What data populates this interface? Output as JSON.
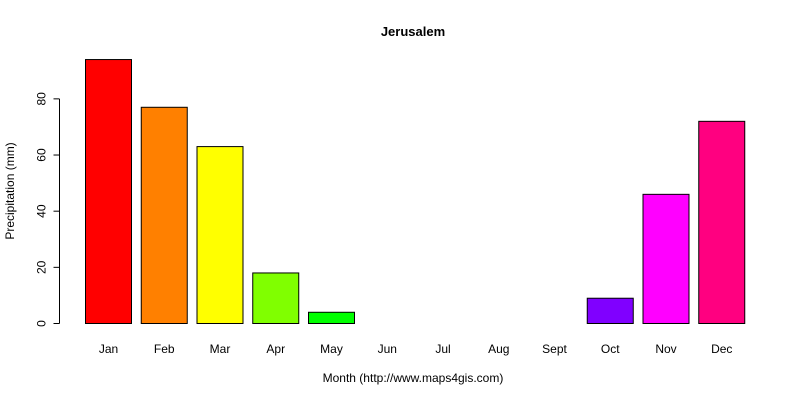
{
  "chart_data": {
    "type": "bar",
    "title": "Jerusalem",
    "xlabel": "Month (http://www.maps4gis.com)",
    "ylabel": "Precipitation (mm)",
    "categories": [
      "Jan",
      "Feb",
      "Mar",
      "Apr",
      "May",
      "Jun",
      "Jul",
      "Aug",
      "Sept",
      "Oct",
      "Nov",
      "Dec"
    ],
    "values": [
      94,
      77,
      63,
      18,
      4,
      0,
      0,
      0,
      0,
      9,
      46,
      72
    ],
    "colors": [
      "#ff0000",
      "#ff8000",
      "#ffff00",
      "#80ff00",
      "#00ff00",
      "#00ff80",
      "#00ffff",
      "#0080ff",
      "#0000ff",
      "#8000ff",
      "#ff00ff",
      "#ff0080"
    ],
    "yticks": [
      0,
      20,
      40,
      60,
      80
    ],
    "ylim": [
      0,
      94
    ],
    "grid": false,
    "legend": "none"
  }
}
